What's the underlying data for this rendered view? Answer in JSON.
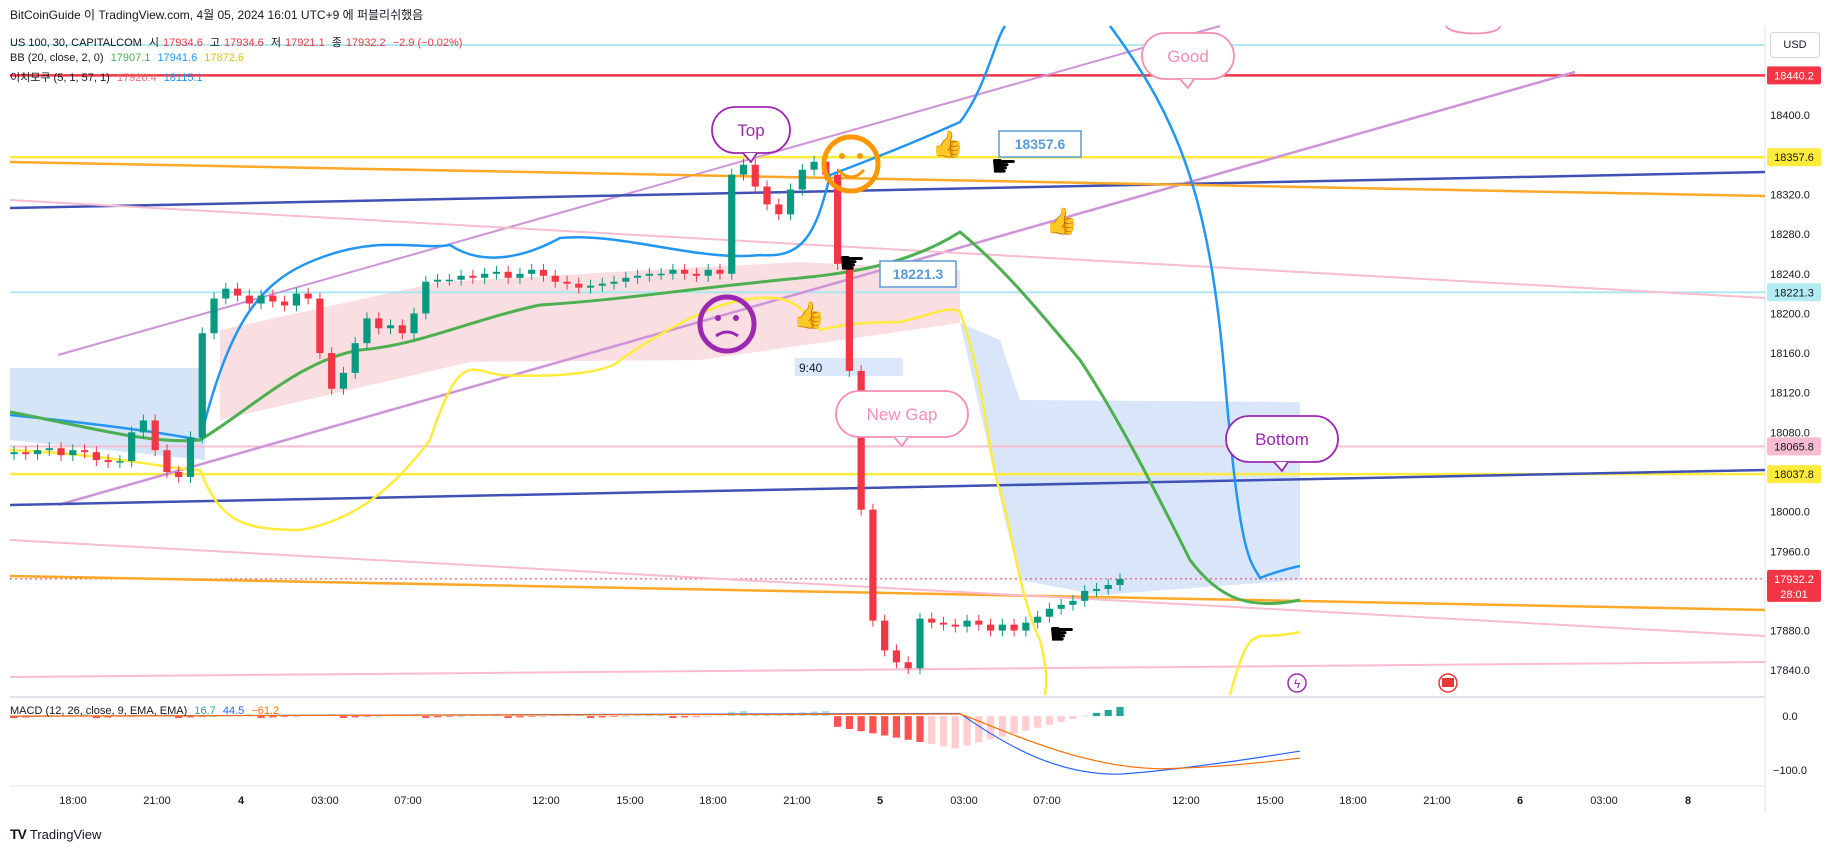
{
  "header": {
    "title": "BitCoinGuide 이 TradingView.com, 4월 05, 2024 16:01 UTC+9 에 퍼블리쉬했음",
    "symbol": "US 100, 30, CAPITALCOM",
    "o_label": "시",
    "o_value": "17934.6",
    "h_label": "고",
    "h_value": "17934.6",
    "l_label": "저",
    "l_value": "17921.1",
    "c_label": "종",
    "c_value": "17932.2",
    "change": "−2.9 (−0.02%)",
    "bb_label": "BB (20, close, 2, 0)",
    "bb_basis": "17907.1",
    "bb_upper": "17941.6",
    "bb_lower": "17872.6",
    "ichi_label": "이치모쿠 (5, 1, 57, 1)",
    "ichi_v1": "17926.4",
    "ichi_v2": "18115.1",
    "macd_label": "MACD (12, 26, close, 9, EMA, EMA)",
    "macd_v1": "16.7",
    "macd_v2": "44.5",
    "macd_v3": "−61.2",
    "currency": "USD",
    "footer": "TradingView"
  },
  "colors": {
    "up": "#089981",
    "down": "#f23645",
    "bb_basis": "#4caf50",
    "bb_upper": "#2196f3",
    "bb_lower": "#ffeb3b",
    "pink_text": "#e57373",
    "purple": "#9c27b0",
    "blue_label": "#5b9bd5"
  },
  "annotations": {
    "top": "Top",
    "good": "Good",
    "new_gap": "New Gap",
    "bottom": "Bottom",
    "price_a": "18357.6",
    "price_b": "18221.3",
    "time_box": "9:40"
  },
  "chart_data": {
    "type": "candlestick",
    "ylim": [
      17815,
      18490
    ],
    "y_ticks": [
      17840,
      17880,
      17920,
      17960,
      18000,
      18040,
      18080,
      18120,
      18160,
      18200,
      18240,
      18280,
      18320,
      18360,
      18400
    ],
    "y_tick_labels": [
      "17840.0",
      "17880.0",
      "",
      "17960.0",
      "18000.0",
      "",
      "18080.0",
      "18120.0",
      "18160.0",
      "18200.0",
      "18240.0",
      "18280.0",
      "18320.0",
      "",
      "18400.0"
    ],
    "x_tick_labels": [
      "18:00",
      "21:00",
      "4",
      "03:00",
      "07:00",
      "12:00",
      "15:00",
      "18:00",
      "21:00",
      "5",
      "03:00",
      "07:00",
      "12:00",
      "15:00",
      "18:00",
      "21:00",
      "6",
      "03:00",
      "8"
    ],
    "price_labels": [
      {
        "value": 18440.2,
        "label": "18440.2",
        "color": "#f23645"
      },
      {
        "value": 18357.6,
        "label": "18357.6",
        "color": "#ffeb3b"
      },
      {
        "value": 18221.3,
        "label": "18221.3",
        "color": "#b2ebf2"
      },
      {
        "value": 18065.8,
        "label": "18065.8",
        "color": "#f8bbd0"
      },
      {
        "value": 18037.8,
        "label": "18037.8",
        "color": "#ffeb3b"
      },
      {
        "value": 17932.2,
        "label": "17932.2",
        "color": "#f23645",
        "sub": "28:01"
      }
    ],
    "ohlc_close": [
      18060,
      18058,
      18062,
      18064,
      18057,
      18062,
      18060,
      18052,
      18050,
      18051,
      18080,
      18092,
      18062,
      18040,
      18035,
      18075,
      18180,
      18215,
      18225,
      18218,
      18210,
      18218,
      18212,
      18208,
      18220,
      18215,
      18160,
      18124,
      18140,
      18170,
      18195,
      18185,
      18188,
      18180,
      18200,
      18232,
      18234,
      18234,
      18238,
      18236,
      18240,
      18242,
      18236,
      18240,
      18244,
      18238,
      18232,
      18230,
      18226,
      18228,
      18230,
      18232,
      18236,
      18238,
      18240,
      18240,
      18244,
      18240,
      18238,
      18244,
      18240,
      18340,
      18350,
      18328,
      18310,
      18300,
      18325,
      18345,
      18353,
      18340,
      18250,
      18142,
      18002,
      17890,
      17860,
      17848,
      17842,
      17892,
      17888,
      17886,
      17884,
      17890,
      17886,
      17880,
      17886,
      17880,
      17888,
      17894,
      17902,
      17906,
      17910,
      17920,
      17922,
      17926,
      17932
    ],
    "macd_ylim": [
      -130,
      30
    ],
    "macd_ticks": [
      0,
      -100
    ],
    "macd_tick_labels": [
      "0.0",
      "−100.0"
    ]
  }
}
